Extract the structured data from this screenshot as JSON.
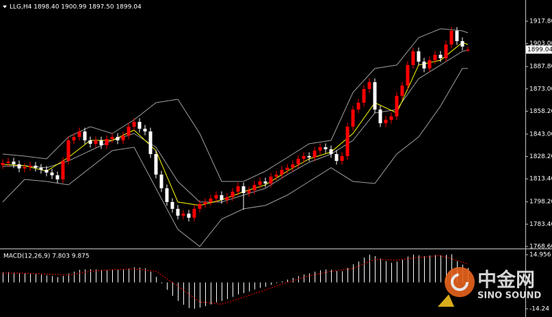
{
  "chart_data": [
    {
      "type": "candlestick",
      "header": "LLG,H4  1898.40 1900.99 1897.50 1899.04",
      "last_price_label": "1899.04",
      "xlim": [
        -0.5,
        95.5
      ],
      "ylim": [
        1767.7,
        1930.5
      ],
      "yticks": [
        {
          "value": 1917.8,
          "label": "1917.80"
        },
        {
          "value": 1903,
          "label": "1903.00"
        },
        {
          "value": 1887.8,
          "label": "1887.80"
        },
        {
          "value": 1873,
          "label": "1873.00"
        },
        {
          "value": 1858.2,
          "label": "1858.20"
        },
        {
          "value": 1843,
          "label": "1843.00"
        },
        {
          "value": 1828.2,
          "label": "1828.20"
        },
        {
          "value": 1813.4,
          "label": "1813.40"
        },
        {
          "value": 1798.2,
          "label": "1798.20"
        },
        {
          "value": 1783.4,
          "label": "1783.40"
        },
        {
          "value": 1768.6,
          "label": "1768.60"
        }
      ],
      "up_color": "#ff0000",
      "down_color": "#ffffff",
      "open": [
        1822.5,
        1823.93,
        1824.83,
        1823.02,
        1820.3,
        1821.21,
        1822.11,
        1820.75,
        1819.39,
        1817.58,
        1815.76,
        1813.04,
        1825.29,
        1838.89,
        1841.16,
        1844.79,
        1838.89,
        1836.62,
        1838.89,
        1835.72,
        1839.8,
        1841.16,
        1838.89,
        1842.07,
        1847.96,
        1851.14,
        1846.6,
        1844.79,
        1829.82,
        1816.22,
        1807.15,
        1798.08,
        1793.54,
        1789.01,
        1790.37,
        1787.65,
        1793.54,
        1796.72,
        1798.08,
        1800.34,
        1802.61,
        1799.44,
        1801.25,
        1804.88,
        1808.51,
        1803.97,
        1805.79,
        1809.41,
        1811.68,
        1810.32,
        1814.86,
        1816.22,
        1819.39,
        1820.75,
        1823.02,
        1826.65,
        1828.46,
        1827.55,
        1832.09,
        1834.36,
        1833,
        1829.82,
        1825.29,
        1828.46,
        1847.96,
        1859.3,
        1863.83,
        1872.9,
        1877.44,
        1859.3,
        1850.23,
        1852.5,
        1854.76,
        1868.37,
        1875.17,
        1888.78,
        1897.85,
        1891.04,
        1886.51,
        1891.95,
        1895.58,
        1893.31,
        1902.38,
        1911.45,
        1904.65,
        1898.4
      ],
      "high": [
        1826.43,
        1827.33,
        1827.33,
        1825.52,
        1823.71,
        1824.61,
        1824.61,
        1823.25,
        1821.89,
        1820.08,
        1818.26,
        1827.79,
        1841.39,
        1843.66,
        1847.29,
        1847.29,
        1841.39,
        1841.39,
        1841.39,
        1842.3,
        1843.66,
        1843.66,
        1844.57,
        1850.46,
        1853.64,
        1853.64,
        1849.1,
        1847.29,
        1832.32,
        1818.72,
        1809.65,
        1800.58,
        1796.04,
        1792.87,
        1792.87,
        1796.04,
        1799.22,
        1800.58,
        1802.84,
        1805.11,
        1805.11,
        1803.75,
        1807.38,
        1811.01,
        1811.01,
        1808.29,
        1811.91,
        1814.18,
        1814.18,
        1817.36,
        1818.72,
        1821.89,
        1823.25,
        1825.52,
        1829.15,
        1830.96,
        1830.96,
        1834.59,
        1836.86,
        1836.86,
        1835.5,
        1832.32,
        1830.96,
        1850.46,
        1861.8,
        1866.33,
        1875.4,
        1879.94,
        1879.94,
        1861.8,
        1855,
        1857.26,
        1870.87,
        1877.67,
        1891.28,
        1900.35,
        1900.35,
        1893.54,
        1894.45,
        1898.08,
        1898.08,
        1904.88,
        1913.95,
        1913.95,
        1907.15,
        1900.99
      ],
      "low": [
        1820,
        1821.43,
        1820.52,
        1817.8,
        1817.8,
        1818.71,
        1818.25,
        1816.89,
        1815.08,
        1813.26,
        1810.54,
        1810.54,
        1822.79,
        1836.39,
        1838.66,
        1836.39,
        1834.12,
        1834.12,
        1833.22,
        1833.22,
        1837.3,
        1836.39,
        1836.39,
        1839.57,
        1845.46,
        1844.1,
        1842.29,
        1827.32,
        1813.72,
        1804.65,
        1795.58,
        1791.04,
        1786.51,
        1786.51,
        1785.15,
        1785.15,
        1791.04,
        1794.22,
        1795.58,
        1797.84,
        1796.94,
        1796.94,
        1798.75,
        1802.38,
        1793,
        1801.47,
        1803.29,
        1806.91,
        1807.82,
        1807.82,
        1812.36,
        1813.72,
        1816.89,
        1818.25,
        1820.52,
        1824.15,
        1825.05,
        1825.05,
        1829.59,
        1830.5,
        1827.32,
        1822.79,
        1822.79,
        1825.96,
        1845.46,
        1856.8,
        1861.33,
        1870.4,
        1856.8,
        1847.73,
        1847.73,
        1850,
        1852.26,
        1865.87,
        1872.67,
        1886.28,
        1888.54,
        1884.01,
        1884.01,
        1889.45,
        1890.81,
        1890.81,
        1899.88,
        1902.15,
        1898.52,
        1897.5
      ],
      "close": [
        1823.93,
        1824.83,
        1823.02,
        1820.3,
        1821.21,
        1822.11,
        1820.75,
        1819.39,
        1817.58,
        1815.76,
        1813.04,
        1825.29,
        1838.89,
        1841.16,
        1844.79,
        1838.89,
        1836.62,
        1838.89,
        1835.72,
        1839.8,
        1841.16,
        1838.89,
        1842.07,
        1847.96,
        1851.14,
        1846.6,
        1844.79,
        1829.82,
        1816.22,
        1807.15,
        1798.08,
        1793.54,
        1789.01,
        1790.37,
        1787.65,
        1793.54,
        1796.72,
        1798.08,
        1800.34,
        1802.61,
        1799.44,
        1801.25,
        1804.88,
        1808.51,
        1803.97,
        1805.79,
        1809.41,
        1811.68,
        1810.32,
        1814.86,
        1816.22,
        1819.39,
        1820.75,
        1823.02,
        1826.65,
        1828.46,
        1827.55,
        1832.09,
        1834.36,
        1833,
        1829.82,
        1825.29,
        1828.46,
        1847.96,
        1859.3,
        1863.83,
        1872.9,
        1877.44,
        1859.3,
        1850.23,
        1852.5,
        1854.76,
        1868.37,
        1875.17,
        1888.78,
        1897.85,
        1891.04,
        1886.51,
        1891.95,
        1895.58,
        1893.31,
        1902.38,
        1911.45,
        1904.65,
        1901.02,
        1899.04
      ],
      "overlays": [
        {
          "color": "#a0a0a0",
          "x": [
            0,
            4,
            8,
            12,
            16,
            20,
            24,
            28,
            32,
            36,
            40,
            44,
            48,
            52,
            56,
            60,
            64,
            68,
            72,
            76,
            80,
            84,
            85
          ],
          "values": [
            1829.82,
            1828.46,
            1826.65,
            1841.16,
            1847.96,
            1843.43,
            1852.5,
            1863.83,
            1866.1,
            1843.43,
            1811.68,
            1811.68,
            1818.48,
            1827.55,
            1836.62,
            1838.89,
            1870.64,
            1886.51,
            1888.78,
            1906.92,
            1912.81,
            1911.45,
            1910.09
          ]
        },
        {
          "color": "#a0a0a0",
          "x": [
            0,
            4,
            8,
            12,
            16,
            20,
            24,
            28,
            32,
            36,
            40,
            44,
            48,
            52,
            56,
            60,
            64,
            68,
            72,
            76,
            80,
            84,
            85
          ],
          "values": [
            1821.66,
            1822.11,
            1820.75,
            1825.29,
            1832.09,
            1838.89,
            1843.43,
            1834.36,
            1811.68,
            1798.08,
            1798.08,
            1802.61,
            1807.15,
            1816.22,
            1824.38,
            1829.82,
            1838.89,
            1857.03,
            1859.3,
            1879.71,
            1888.78,
            1897.85,
            1898.75
          ]
        },
        {
          "color": "#a0a0a0",
          "x": [
            0,
            4,
            8,
            12,
            16,
            20,
            24,
            28,
            32,
            36,
            40,
            44,
            48,
            52,
            56,
            60,
            64,
            68,
            72,
            76,
            80,
            84,
            85
          ],
          "values": [
            1798.08,
            1813.04,
            1811.68,
            1809.41,
            1820.75,
            1832.09,
            1834.36,
            1807.15,
            1779.94,
            1768.6,
            1786.74,
            1793.54,
            1795.81,
            1802.61,
            1811.68,
            1820.75,
            1811.68,
            1810.32,
            1829.82,
            1841.16,
            1861.57,
            1886.51,
            1886.51
          ]
        },
        {
          "color": "#ffff00",
          "x": [
            0,
            4,
            8,
            12,
            16,
            20,
            24,
            28,
            32,
            36,
            40,
            44,
            48,
            52,
            56,
            60,
            64,
            68,
            72,
            76,
            80,
            84,
            85
          ],
          "values": [
            1823.02,
            1822.11,
            1818.48,
            1827.55,
            1838.89,
            1838.89,
            1845.7,
            1832.09,
            1798.08,
            1795.81,
            1799.44,
            1804.88,
            1809.41,
            1818.48,
            1826.65,
            1831.18,
            1843.43,
            1863.83,
            1857.03,
            1888.78,
            1891.95,
            1903.75,
            1902.38
          ]
        }
      ]
    },
    {
      "type": "macd",
      "title": "MACD(12,26,9) 7.803 9.875",
      "xlim": [
        -0.5,
        95.5
      ],
      "ylim": [
        -18.3,
        17.55
      ],
      "yticks": [
        14.956,
        -14.24
      ],
      "color": "#ffffff",
      "values": [
        5.5,
        5.6,
        5.4,
        5.0,
        4.8,
        4.7,
        4.5,
        4.2,
        3.8,
        3.4,
        2.9,
        3.5,
        4.8,
        5.8,
        6.8,
        7.0,
        7.1,
        7.0,
        6.8,
        6.9,
        7.0,
        6.8,
        7.0,
        7.6,
        8.2,
        8.0,
        7.6,
        5.8,
        3.0,
        -0.5,
        -4.0,
        -7.2,
        -10.0,
        -12.0,
        -13.8,
        -14.2,
        -13.6,
        -12.8,
        -11.9,
        -10.8,
        -10.0,
        -9.0,
        -7.8,
        -6.5,
        -5.8,
        -4.9,
        -3.8,
        -2.9,
        -2.3,
        -1.3,
        -0.4,
        0.6,
        1.5,
        2.4,
        3.4,
        4.3,
        4.9,
        5.8,
        6.6,
        7.0,
        6.9,
        6.2,
        6.0,
        7.8,
        9.8,
        11.3,
        13.4,
        15.0,
        14.2,
        12.9,
        11.5,
        10.6,
        11.2,
        12.3,
        14.0,
        15.0,
        14.6,
        14.2,
        14.5,
        14.8,
        14.6,
        14.9,
        15.2,
        11.5,
        9.6,
        7.803
      ],
      "signal": {
        "color": "#ff0000",
        "x": [
          0,
          4,
          8,
          12,
          16,
          20,
          24,
          28,
          32,
          36,
          40,
          44,
          48,
          52,
          56,
          60,
          64,
          68,
          72,
          76,
          80,
          84,
          85
        ],
        "values": [
          5.0,
          5.0,
          4.5,
          4.0,
          6.0,
          6.9,
          7.3,
          6.0,
          -2.0,
          -10.5,
          -11.8,
          -8.0,
          -4.0,
          0.0,
          3.5,
          6.0,
          7.5,
          12.5,
          12.0,
          13.5,
          14.5,
          11.0,
          9.875
        ]
      }
    }
  ],
  "watermark": {
    "brand": "中金网",
    "sub": "SINO SOUND"
  }
}
